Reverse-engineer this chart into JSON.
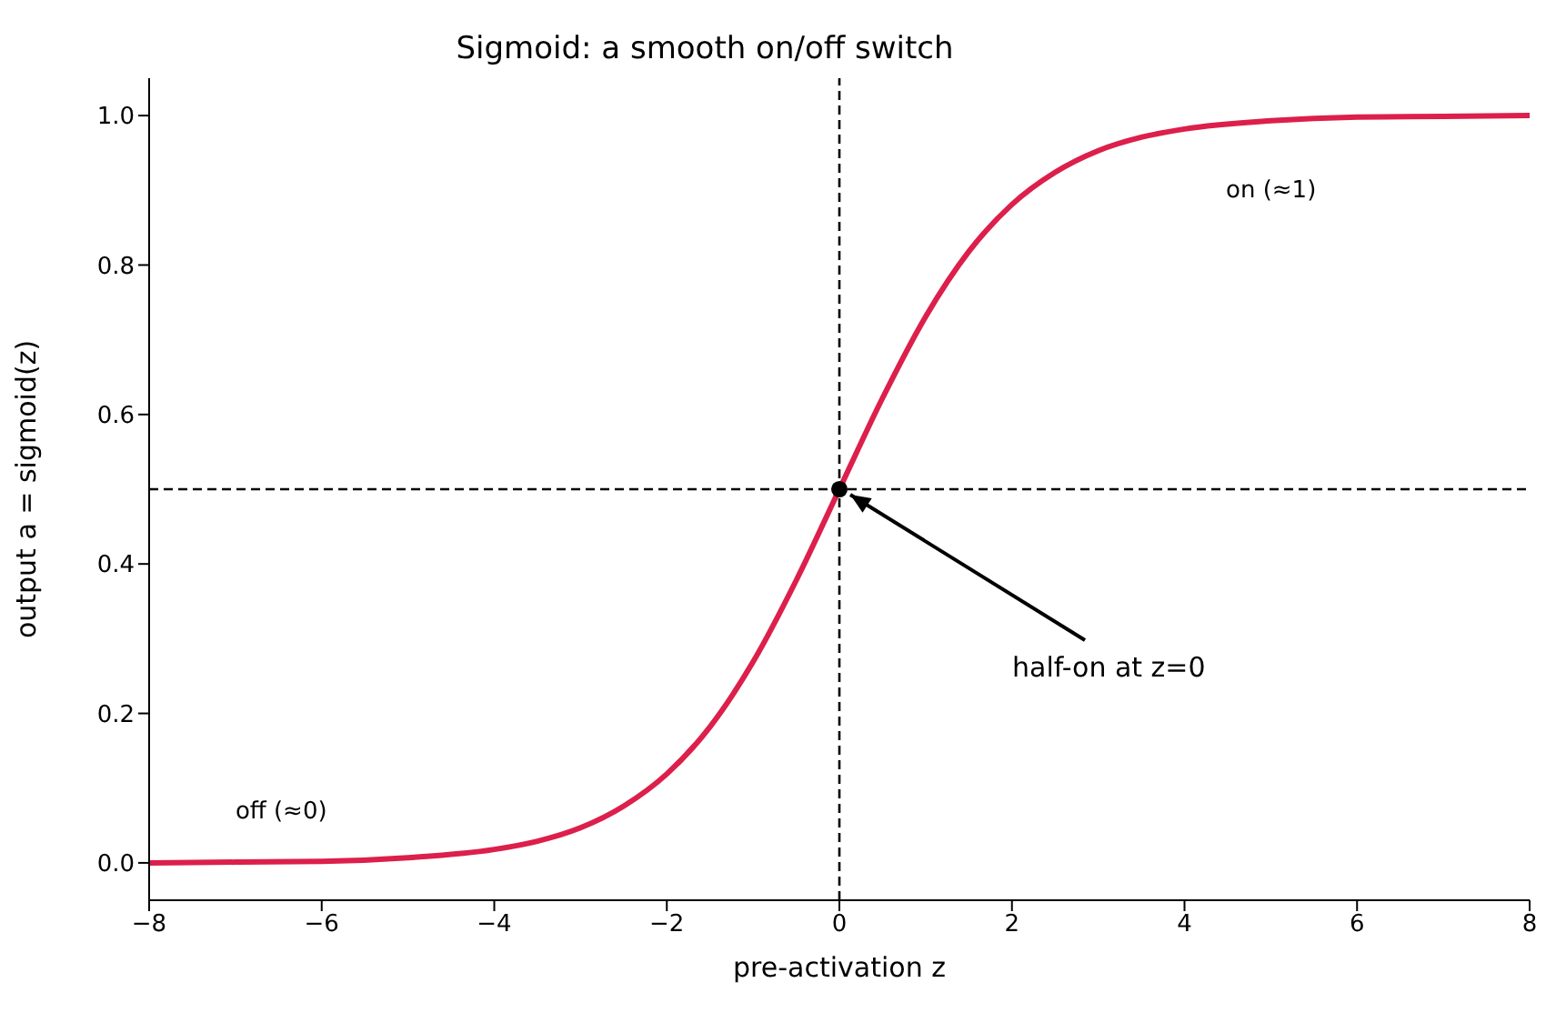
{
  "chart_data": {
    "type": "line",
    "title": "Sigmoid: a smooth on/off switch",
    "xlabel": "pre-activation z",
    "ylabel": "output a = sigmoid(z)",
    "xlim": [
      -8,
      8
    ],
    "xticks": [
      {
        "value": -8,
        "label": "−8"
      },
      {
        "value": -6,
        "label": "−6"
      },
      {
        "value": -4,
        "label": "−4"
      },
      {
        "value": -2,
        "label": "−2"
      },
      0,
      2,
      4,
      6,
      8
    ],
    "ylim": [
      -0.05,
      1.05
    ],
    "yticks": [
      {
        "value": 0,
        "label": "0.0"
      },
      {
        "value": 0.2,
        "label": "0.2"
      },
      {
        "value": 0.4,
        "label": "0.4"
      },
      {
        "value": 0.6,
        "label": "0.6"
      },
      {
        "value": 0.8,
        "label": "0.8"
      },
      {
        "value": 1,
        "label": "1.0"
      }
    ],
    "grid": false,
    "legend": false,
    "series": [
      {
        "color": "#dc1f4b",
        "line_style": "solid",
        "marker": "none",
        "x": [
          -8,
          -7,
          -6,
          -5,
          -4,
          -3.5,
          -3,
          -2.5,
          -2,
          -1.5,
          -1,
          -0.5,
          0,
          0.5,
          1,
          1.5,
          2,
          2.5,
          3,
          3.5,
          4,
          5,
          6,
          7,
          8
        ],
        "values": [
          0.0,
          0.001,
          0.002,
          0.007,
          0.018,
          0.029,
          0.047,
          0.076,
          0.119,
          0.182,
          0.269,
          0.378,
          0.5,
          0.622,
          0.731,
          0.818,
          0.881,
          0.924,
          0.953,
          0.971,
          0.982,
          0.993,
          0.998,
          0.999,
          1.0
        ]
      },
      {
        "type": "scatter",
        "color": "#000000",
        "marker": "circle",
        "x": [
          0
        ],
        "values": [
          0.5
        ]
      }
    ],
    "ref_lines": [
      {
        "axis": "x",
        "value": 0,
        "color": "#000000",
        "line_style": "dashed"
      },
      {
        "axis": "y",
        "value": 0.5,
        "color": "#000000",
        "line_style": "dashed"
      }
    ],
    "annotations": [
      {
        "text": "half-on at z=0",
        "x": 0,
        "y": 0.5
      },
      "on (≈1)",
      "off (≈0)"
    ]
  }
}
